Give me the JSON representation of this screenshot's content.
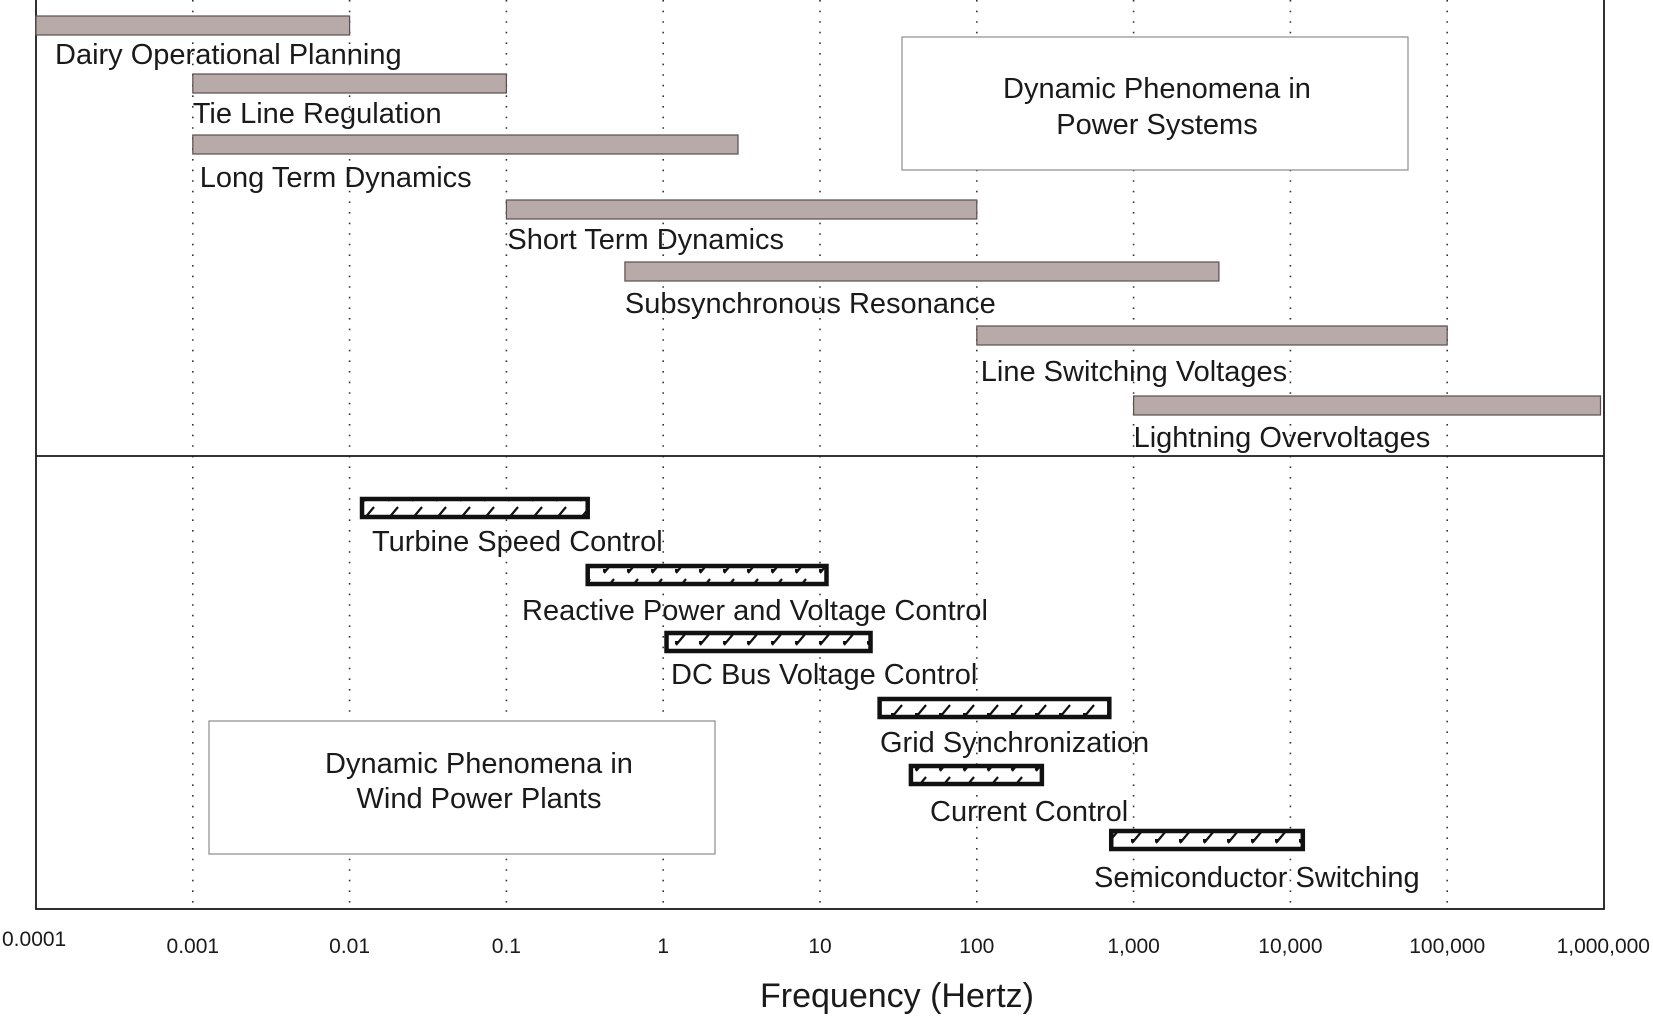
{
  "chart_data": {
    "type": "range-bar",
    "xscale": "log10",
    "xlim": [
      0.0001,
      1000000
    ],
    "xlabel": "Frequency (Hertz)",
    "ticks": [
      {
        "value": 0.0001,
        "label": "0.0001"
      },
      {
        "value": 0.001,
        "label": "0.001"
      },
      {
        "value": 0.01,
        "label": "0.01"
      },
      {
        "value": 0.1,
        "label": "0.1"
      },
      {
        "value": 1,
        "label": "1"
      },
      {
        "value": 10,
        "label": "10"
      },
      {
        "value": 100,
        "label": "100"
      },
      {
        "value": 1000,
        "label": "1,000"
      },
      {
        "value": 10000,
        "label": "10,000"
      },
      {
        "value": 100000,
        "label": "100,000"
      },
      {
        "value": 1000000,
        "label": "1,000,000"
      }
    ],
    "grid": "dotted vertical at decades",
    "colors": {
      "power_bar": "#b7aaa9",
      "wind_bar_edge": "#111111"
    },
    "panels": [
      {
        "title": "Dynamic Phenomena in Power Systems",
        "title_lines": [
          "Dynamic Phenomena in",
          "Power Systems"
        ],
        "style": "solid",
        "bars": [
          {
            "label": "Dairy Operational Planning",
            "start": 0.0001,
            "end": 0.01
          },
          {
            "label": "Tie Line Regulation",
            "start": 0.001,
            "end": 0.1
          },
          {
            "label": "Long Term Dynamics",
            "start": 0.001,
            "end": 3
          },
          {
            "label": "Short Term Dynamics",
            "start": 0.1,
            "end": 100
          },
          {
            "label": "Subsynchronous Resonance",
            "start": 0.57,
            "end": 3500
          },
          {
            "label": "Line Switching Voltages",
            "start": 100,
            "end": 100000
          },
          {
            "label": "Lightning Overvoltages",
            "start": 1000,
            "end": 950000
          }
        ]
      },
      {
        "title": "Dynamic Phenomena in Wind Power Plants",
        "title_lines": [
          "Dynamic Phenomena in",
          "Wind Power Plants"
        ],
        "style": "hatched",
        "bars": [
          {
            "label": "Turbine Speed Control",
            "start": 0.012,
            "end": 0.33
          },
          {
            "label": "Reactive Power and Voltage Control",
            "start": 0.33,
            "end": 11
          },
          {
            "label": "DC Bus Voltage Control",
            "start": 1.05,
            "end": 21
          },
          {
            "label": "Grid Synchronization",
            "start": 24,
            "end": 700
          },
          {
            "label": "Current Control",
            "start": 38,
            "end": 260
          },
          {
            "label": "Semiconductor Switching",
            "start": 720,
            "end": 12000
          }
        ]
      }
    ]
  }
}
